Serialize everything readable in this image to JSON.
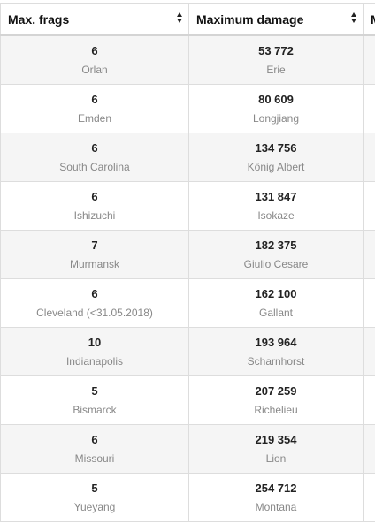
{
  "headers": {
    "col1": "Max. frags",
    "col2": "Maximum damage",
    "col3": "M"
  },
  "rows": [
    {
      "frags": "6",
      "frags_ship": "Orlan",
      "damage": "53 772",
      "damage_ship": "Erie"
    },
    {
      "frags": "6",
      "frags_ship": "Emden",
      "damage": "80 609",
      "damage_ship": "Longjiang"
    },
    {
      "frags": "6",
      "frags_ship": "South Carolina",
      "damage": "134 756",
      "damage_ship": "König Albert"
    },
    {
      "frags": "6",
      "frags_ship": "Ishizuchi",
      "damage": "131 847",
      "damage_ship": "Isokaze"
    },
    {
      "frags": "7",
      "frags_ship": "Murmansk",
      "damage": "182 375",
      "damage_ship": "Giulio Cesare"
    },
    {
      "frags": "6",
      "frags_ship": "Cleveland (<31.05.2018)",
      "damage": "162 100",
      "damage_ship": "Gallant"
    },
    {
      "frags": "10",
      "frags_ship": "Indianapolis",
      "damage": "193 964",
      "damage_ship": "Scharnhorst"
    },
    {
      "frags": "5",
      "frags_ship": "Bismarck",
      "damage": "207 259",
      "damage_ship": "Richelieu"
    },
    {
      "frags": "6",
      "frags_ship": "Missouri",
      "damage": "219 354",
      "damage_ship": "Lion"
    },
    {
      "frags": "5",
      "frags_ship": "Yueyang",
      "damage": "254 712",
      "damage_ship": "Montana"
    }
  ]
}
